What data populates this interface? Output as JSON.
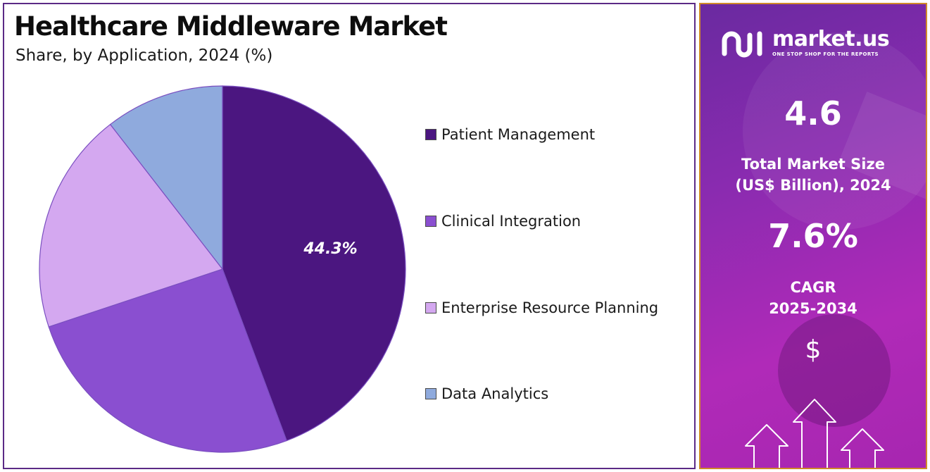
{
  "chart_data": {
    "type": "pie",
    "title": "Healthcare Middleware Market",
    "subtitle": "Share, by Application, 2024 (%)",
    "categories": [
      "Patient Management",
      "Clinical Integration",
      "Enterprise Resource Planning",
      "Data Analytics"
    ],
    "values": [
      44.3,
      25.6,
      19.6,
      10.5
    ],
    "colors": [
      "#4b1680",
      "#8a4fd0",
      "#d4a8f0",
      "#8faadd"
    ],
    "data_labels": [
      "44.3%",
      "",
      "",
      ""
    ],
    "legend_position": "right"
  },
  "side_panel": {
    "brand_name": "market.us",
    "brand_tagline": "ONE STOP SHOP FOR THE REPORTS",
    "market_size_value": "4.6",
    "market_size_label_line1": "Total Market Size",
    "market_size_label_line2": "(US$ Billion), 2024",
    "cagr_value": "7.6%",
    "cagr_label_line1": "CAGR",
    "cagr_label_line2": "2025-2034",
    "currency_symbol": "$"
  }
}
